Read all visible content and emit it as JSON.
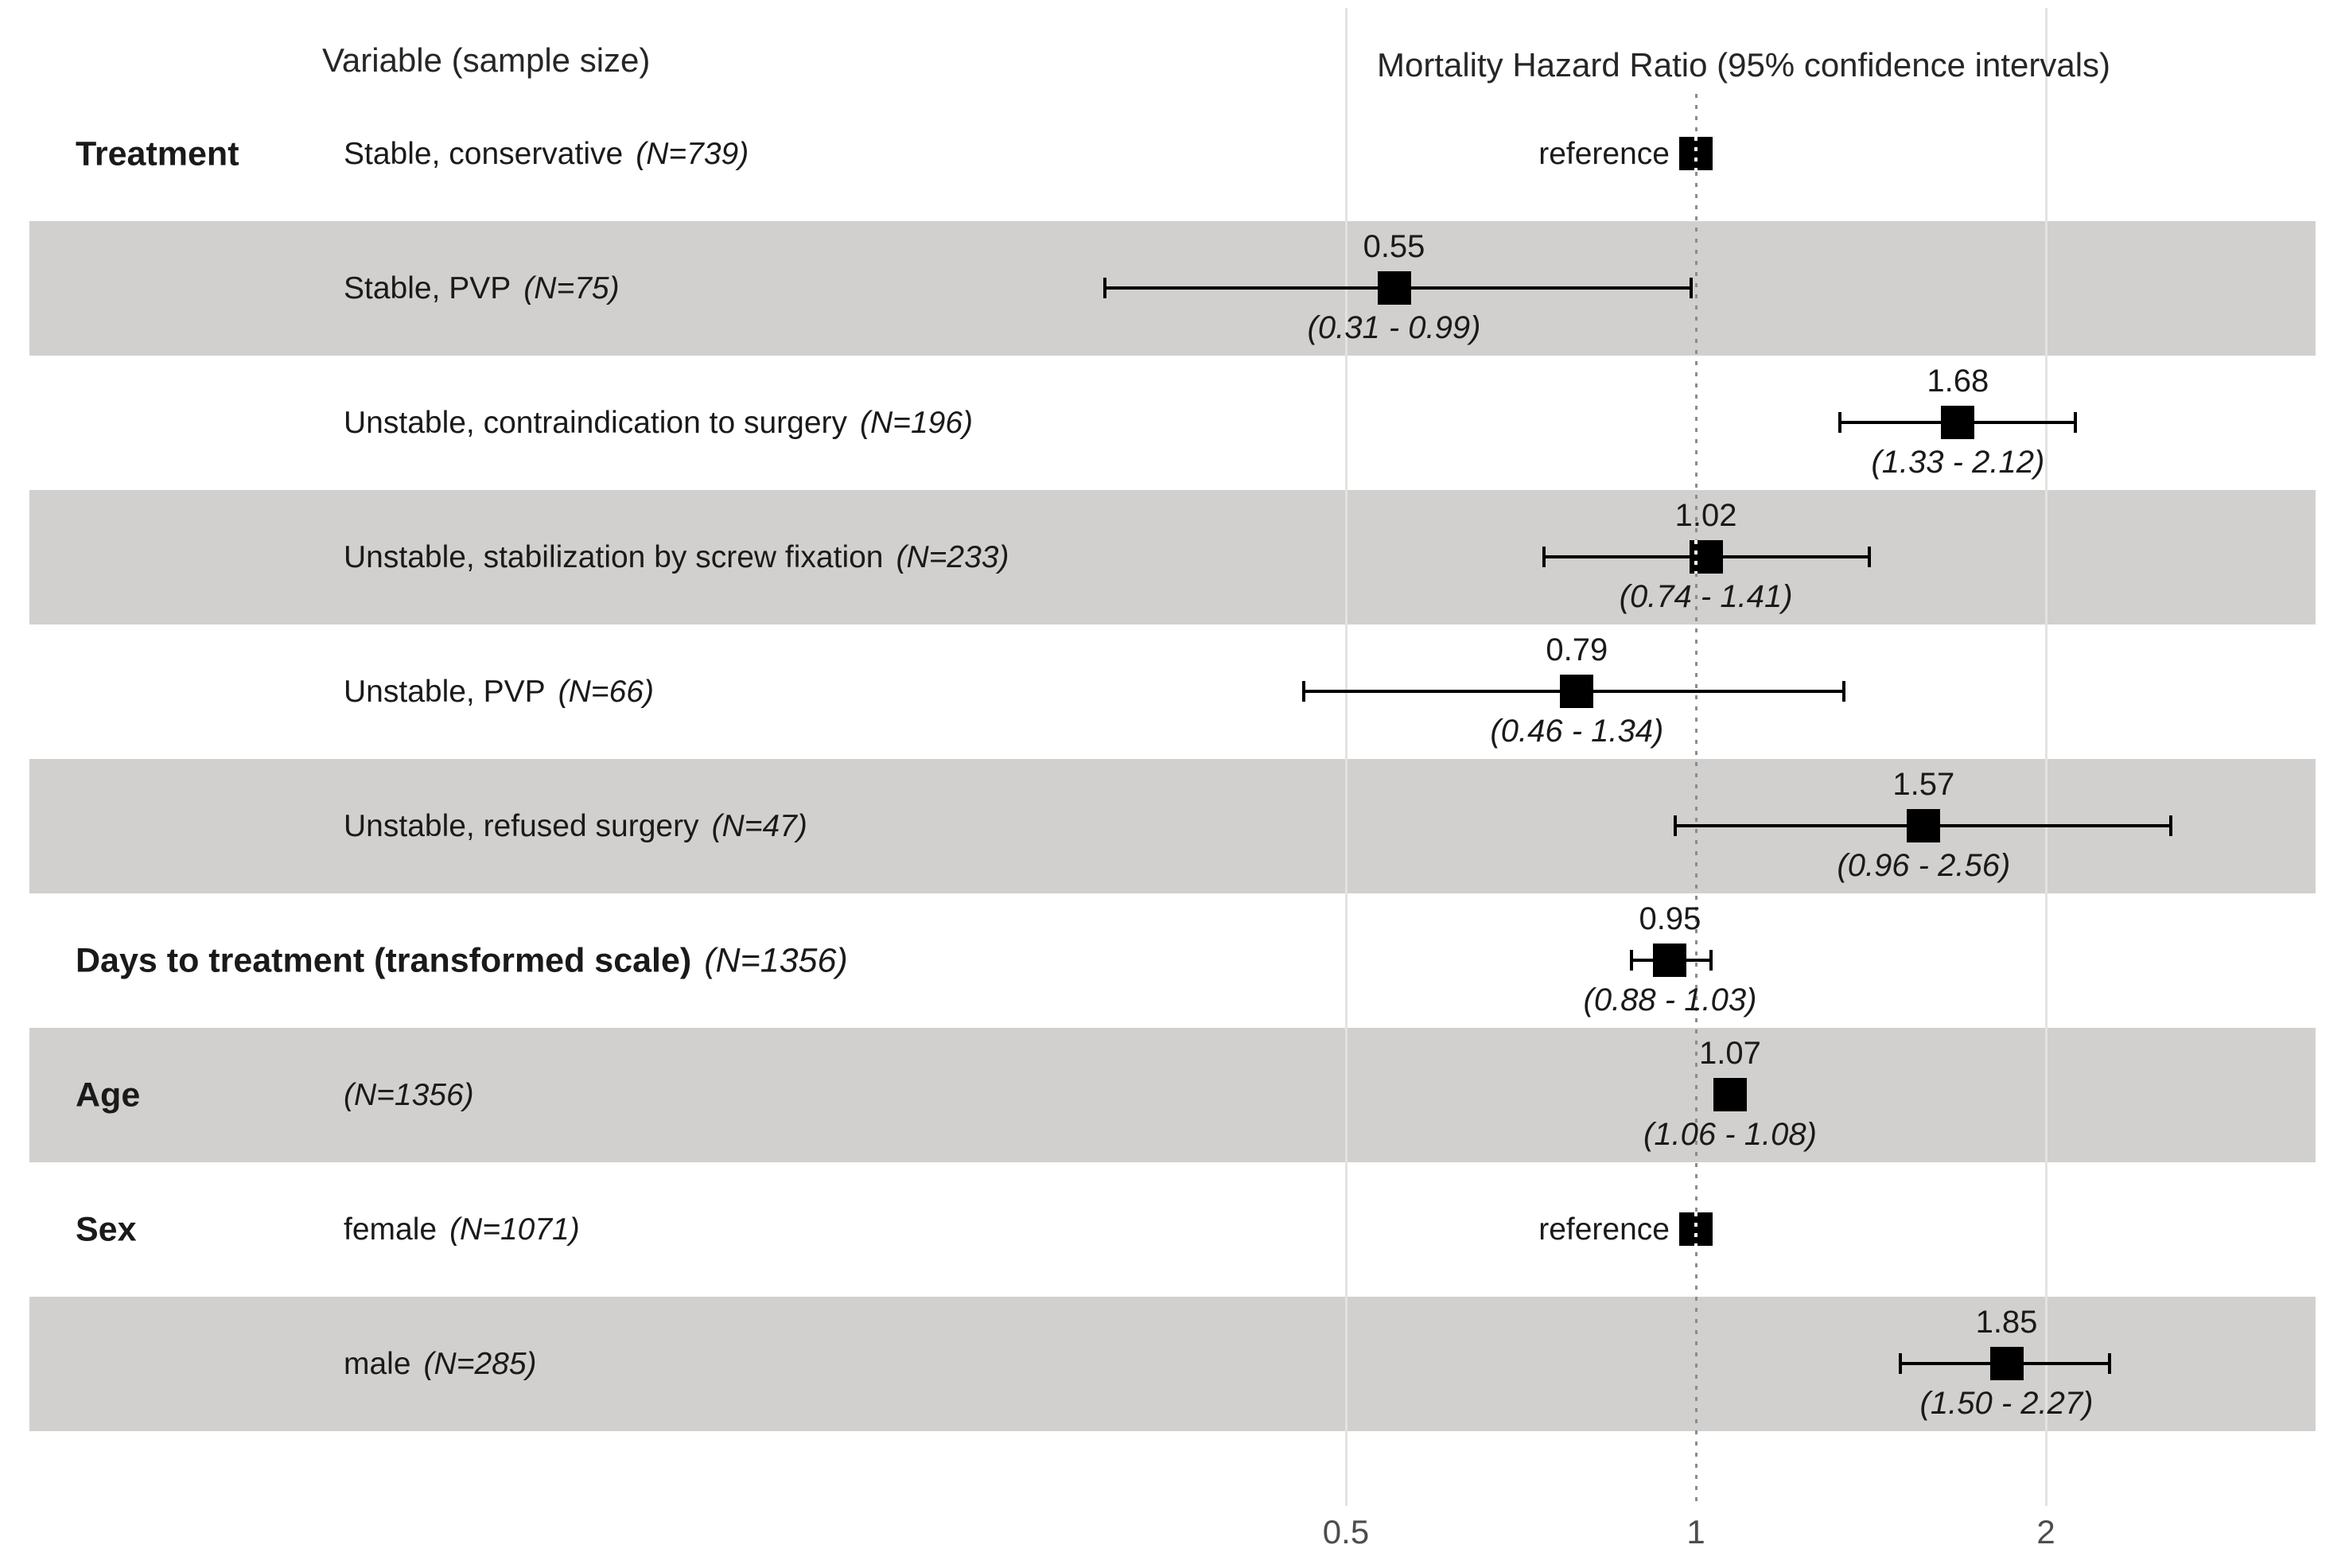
{
  "chart_data": {
    "type": "forest",
    "title_left": "Variable (sample size)",
    "title_right": "Mortality Hazard Ratio (95% confidence intervals)",
    "x_axis": {
      "scale": "log2",
      "reference_value": 1,
      "ticks": [
        {
          "value": 0.5,
          "label": "0.5",
          "style": "solid"
        },
        {
          "value": 1,
          "label": "1",
          "style": "dotted"
        },
        {
          "value": 2,
          "label": "2",
          "style": "solid"
        }
      ]
    },
    "rows": [
      {
        "group": "Treatment",
        "group_n_label": "",
        "label": "Stable, conservative",
        "n_label": "(N=739)",
        "type": "reference",
        "ref_label": "reference",
        "value": 1.0,
        "shaded": false
      },
      {
        "group": "",
        "group_n_label": "",
        "label": "Stable, PVP",
        "n_label": "(N=75)",
        "type": "estimate",
        "value": 0.55,
        "ci_low": 0.31,
        "ci_high": 0.99,
        "estimate_label": "0.55",
        "ci_label": "(0.31 - 0.99)",
        "shaded": true
      },
      {
        "group": "",
        "group_n_label": "",
        "label": "Unstable, contraindication to surgery",
        "n_label": "(N=196)",
        "type": "estimate",
        "value": 1.68,
        "ci_low": 1.33,
        "ci_high": 2.12,
        "estimate_label": "1.68",
        "ci_label": "(1.33 - 2.12)",
        "shaded": false
      },
      {
        "group": "",
        "group_n_label": "",
        "label": "Unstable, stabilization by screw fixation",
        "n_label": "(N=233)",
        "type": "estimate",
        "value": 1.02,
        "ci_low": 0.74,
        "ci_high": 1.41,
        "estimate_label": "1.02",
        "ci_label": "(0.74 - 1.41)",
        "shaded": true
      },
      {
        "group": "",
        "group_n_label": "",
        "label": "Unstable, PVP",
        "n_label": "(N=66)",
        "type": "estimate",
        "value": 0.79,
        "ci_low": 0.46,
        "ci_high": 1.34,
        "estimate_label": "0.79",
        "ci_label": "(0.46 - 1.34)",
        "shaded": false
      },
      {
        "group": "",
        "group_n_label": "",
        "label": "Unstable, refused surgery",
        "n_label": "(N=47)",
        "type": "estimate",
        "value": 1.57,
        "ci_low": 0.96,
        "ci_high": 2.56,
        "estimate_label": "1.57",
        "ci_label": "(0.96 - 2.56)",
        "shaded": true
      },
      {
        "group": "Days to treatment (transformed scale)",
        "group_n_label": "(N=1356)",
        "label": "",
        "n_label": "",
        "type": "estimate",
        "value": 0.95,
        "ci_low": 0.88,
        "ci_high": 1.03,
        "estimate_label": "0.95",
        "ci_label": "(0.88 - 1.03)",
        "shaded": false
      },
      {
        "group": "Age",
        "group_n_label": "",
        "label": "",
        "n_label": "(N=1356)",
        "type": "estimate",
        "value": 1.07,
        "ci_low": 1.06,
        "ci_high": 1.08,
        "estimate_label": "1.07",
        "ci_label": "(1.06 - 1.08)",
        "shaded": true
      },
      {
        "group": "Sex",
        "group_n_label": "",
        "label": "female",
        "n_label": "(N=1071)",
        "type": "reference",
        "ref_label": "reference",
        "value": 1.0,
        "shaded": false
      },
      {
        "group": "",
        "group_n_label": "",
        "label": "male",
        "n_label": "(N=285)",
        "type": "estimate",
        "value": 1.85,
        "ci_low": 1.5,
        "ci_high": 2.27,
        "estimate_label": "1.85",
        "ci_label": "(1.50 - 2.27)",
        "shaded": true
      }
    ],
    "colors": {
      "band": "#d2d0ce",
      "gridline": "#e4e3e0",
      "dotted_reference_line": "#8c8c8c",
      "marker": "#000000",
      "text": "#1a1a1a",
      "axis_text": "#4d4d4d"
    }
  }
}
